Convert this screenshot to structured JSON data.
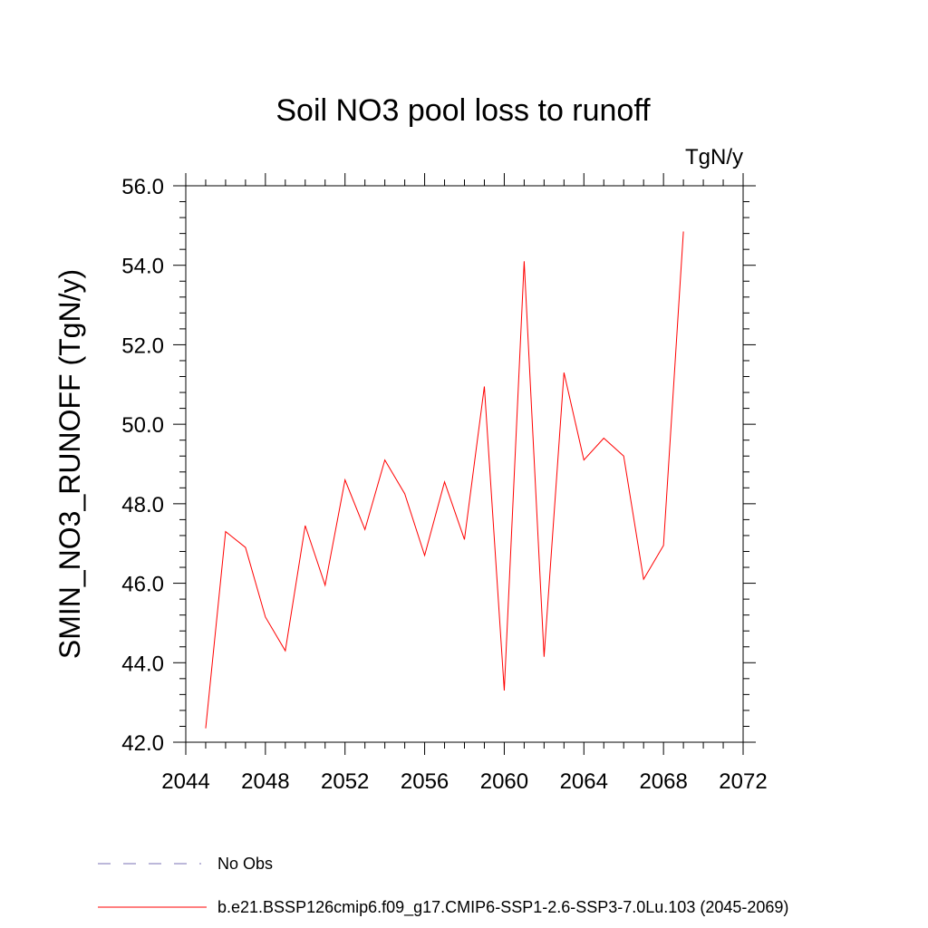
{
  "chart_data": {
    "type": "line",
    "title": "Soil NO3 pool loss to runoff",
    "units": "TgN/y",
    "ylabel": "SMIN_NO3_RUNOFF  (TgN/y)",
    "xlabel": "",
    "xlim": [
      2044,
      2072
    ],
    "ylim": [
      42.0,
      56.0
    ],
    "x_major_ticks": [
      2044,
      2048,
      2052,
      2056,
      2060,
      2064,
      2068,
      2072
    ],
    "y_major_ticks": [
      42.0,
      44.0,
      46.0,
      48.0,
      50.0,
      52.0,
      54.0,
      56.0
    ],
    "grid": false,
    "legend_position": "bottom",
    "series": [
      {
        "name": "b.e21.BSSP126cmip6.f09_g17.CMIP6-SSP1-2.6-SSP3-7.0Lu.103 (2045-2069)",
        "color": "#ff0000",
        "x": [
          2045,
          2046,
          2047,
          2048,
          2049,
          2050,
          2051,
          2052,
          2053,
          2054,
          2055,
          2056,
          2057,
          2058,
          2059,
          2060,
          2061,
          2062,
          2063,
          2064,
          2065,
          2066,
          2067,
          2068,
          2069
        ],
        "y": [
          42.35,
          47.3,
          46.9,
          45.15,
          44.3,
          47.45,
          45.95,
          48.6,
          47.35,
          49.1,
          48.25,
          46.7,
          48.55,
          47.1,
          50.95,
          43.3,
          54.1,
          44.15,
          51.3,
          49.1,
          49.65,
          49.2,
          46.1,
          46.95,
          54.85
        ]
      }
    ],
    "legend": [
      {
        "label": "No Obs",
        "style": "dashed",
        "color": "#7a72b5"
      },
      {
        "label": "b.e21.BSSP126cmip6.f09_g17.CMIP6-SSP1-2.6-SSP3-7.0Lu.103 (2045-2069)",
        "style": "solid",
        "color": "#ff0000"
      }
    ]
  }
}
